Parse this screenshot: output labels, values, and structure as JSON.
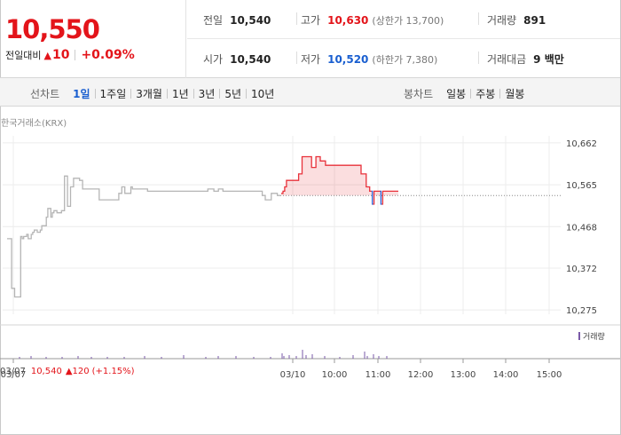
{
  "quote": {
    "price": "10,550",
    "change_label": "전일대비",
    "change_icon": "up-triangle-icon",
    "change_arrow": "▲",
    "change_value": "10",
    "change_pct": "+0.09%"
  },
  "stats": {
    "prev_close": {
      "label": "전일",
      "value": "10,540"
    },
    "high": {
      "label": "고가",
      "value": "10,630",
      "sub": "(상한가 13,700)"
    },
    "volume": {
      "label": "거래량",
      "value": "891"
    },
    "open": {
      "label": "시가",
      "value": "10,540"
    },
    "low": {
      "label": "저가",
      "value": "10,520",
      "sub": "(하한가 7,380)"
    },
    "amount": {
      "label": "거래대금",
      "value": "9 백만"
    }
  },
  "toolbar": {
    "line_title": "선차트",
    "line_periods": [
      "1일",
      "1주일",
      "3개월",
      "1년",
      "3년",
      "5년",
      "10년"
    ],
    "line_active": 0,
    "candle_title": "봉차트",
    "candle_periods": [
      "일봉",
      "주봉",
      "월봉"
    ]
  },
  "chart": {
    "market_label": "한국거래소(KRX)",
    "volume_legend": "거래량",
    "colors": {
      "up": "#e8313a",
      "down": "#2b63d8",
      "prev": "#b5b5b5",
      "volume": "#7a5aa8"
    }
  },
  "bottom_info": {
    "date": "03/07",
    "price": "10,540",
    "arrow": "▲",
    "change": "120",
    "pct": "(+1.15%)"
  },
  "chart_data": {
    "type": "line",
    "title": "",
    "xlabel": "",
    "ylabel": "",
    "y_ticks": [
      10662,
      10565,
      10468,
      10372,
      10275
    ],
    "y_tick_labels": [
      "10,662",
      "10,565",
      "10,468",
      "10,372",
      "10,275"
    ],
    "ylim": [
      10265,
      10670
    ],
    "x_tick_labels": [
      "03/07",
      "03/10",
      "10:00",
      "11:00",
      "12:00",
      "13:00",
      "14:00",
      "15:00"
    ],
    "reference_price": 10540,
    "grid": true,
    "series": [
      {
        "name": "03/07",
        "values": [
          10440,
          10440,
          10440,
          10325,
          10325,
          10305,
          10305,
          10305,
          10305,
          10445,
          10440,
          10445,
          10445,
          10450,
          10440,
          10440,
          10450,
          10455,
          10460,
          10460,
          10455,
          10455,
          10460,
          10470,
          10470,
          10470,
          10490,
          10510,
          10510,
          10490,
          10500,
          10505,
          10505,
          10500,
          10500,
          10500,
          10505,
          10505,
          10585,
          10585,
          10515,
          10515,
          10560,
          10560,
          10580,
          10580,
          10580,
          10580,
          10575,
          10575,
          10555,
          10555,
          10555,
          10555,
          10555,
          10555,
          10555,
          10555,
          10555,
          10555,
          10555,
          10530,
          10530,
          10530,
          10530,
          10530,
          10530,
          10530,
          10530,
          10530,
          10530,
          10530,
          10530,
          10530,
          10545,
          10545,
          10560,
          10560,
          10545,
          10545,
          10545,
          10545,
          10560,
          10555,
          10555,
          10555,
          10555,
          10555,
          10555,
          10555,
          10555,
          10555,
          10555,
          10550,
          10550,
          10550,
          10550,
          10550,
          10550,
          10550,
          10550,
          10550,
          10550,
          10550,
          10550,
          10550,
          10550,
          10550,
          10550,
          10550,
          10550,
          10550,
          10550,
          10550,
          10550,
          10550,
          10550,
          10550,
          10550,
          10550,
          10550,
          10550,
          10550,
          10550,
          10550,
          10550,
          10550,
          10550,
          10550,
          10550,
          10550,
          10550,
          10550,
          10555,
          10555,
          10555,
          10555,
          10550,
          10550,
          10550,
          10555,
          10555,
          10555,
          10550,
          10550,
          10550,
          10550,
          10550,
          10550,
          10550,
          10550,
          10550,
          10550,
          10550,
          10550,
          10550,
          10550,
          10550,
          10550,
          10550,
          10550,
          10550,
          10550,
          10550,
          10550,
          10550,
          10550,
          10550,
          10550,
          10540,
          10540,
          10530,
          10530,
          10530,
          10530,
          10545,
          10545,
          10545,
          10545,
          10540,
          10540,
          10540
        ]
      },
      {
        "name": "03/10",
        "values": [
          10545,
          10545,
          10550,
          10550,
          10560,
          10560,
          10575,
          10575,
          10575,
          10575,
          10575,
          10575,
          10575,
          10575,
          10575,
          10575,
          10575,
          10575,
          10575,
          10575,
          10590,
          10590,
          10590,
          10590,
          10630,
          10630,
          10630,
          10630,
          10630,
          10630,
          10630,
          10630,
          10630,
          10630,
          10630,
          10605,
          10605,
          10605,
          10605,
          10605,
          10630,
          10630,
          10630,
          10630,
          10630,
          10620,
          10620,
          10620,
          10620,
          10620,
          10620,
          10610,
          10610,
          10610,
          10610,
          10610,
          10610,
          10610,
          10610,
          10610,
          10610,
          10610,
          10610,
          10610,
          10610,
          10610,
          10610,
          10610,
          10610,
          10610,
          10610,
          10610,
          10610,
          10610,
          10610,
          10610,
          10610,
          10610,
          10610,
          10610,
          10610,
          10610,
          10610,
          10610,
          10610,
          10610,
          10610,
          10610,
          10610,
          10610,
          10610,
          10610,
          10590,
          10590,
          10590,
          10590,
          10590,
          10590,
          10560,
          10560,
          10560,
          10560,
          10550,
          10550,
          10550,
          10520,
          10520,
          10550,
          10550,
          10550,
          10550,
          10550,
          10550,
          10550,
          10550,
          10520,
          10520,
          10550,
          10550,
          10550,
          10550,
          10550,
          10550,
          10550,
          10550,
          10550,
          10550,
          10550,
          10550,
          10550,
          10550,
          10550,
          10550,
          10550,
          10550,
          10550
        ]
      }
    ]
  }
}
